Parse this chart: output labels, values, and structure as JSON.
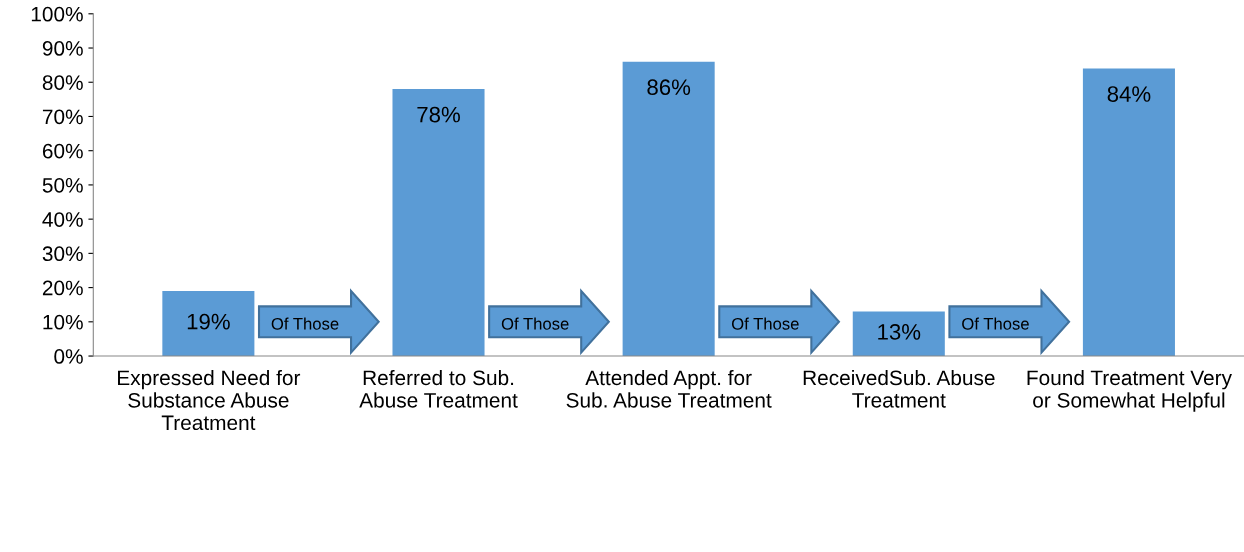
{
  "chart_data": {
    "type": "bar",
    "categories": [
      "Expressed Need for Substance Abuse Treatment",
      "Referred to Sub. Abuse Treatment",
      "Attended Appt. for Sub. Abuse Treatment",
      "ReceivedSub. Abuse Treatment",
      "Found Treatment Very or Somewhat Helpful"
    ],
    "values": [
      19,
      78,
      86,
      13,
      84
    ],
    "value_labels": [
      "19%",
      "78%",
      "86%",
      "13%",
      "84%"
    ],
    "color": "#5b9bd5",
    "ylim": [
      0,
      100
    ],
    "yticks": [
      {
        "value": 0,
        "label": "0%"
      },
      {
        "value": 10,
        "label": "10%"
      },
      {
        "value": 20,
        "label": "20%"
      },
      {
        "value": 30,
        "label": "30%"
      },
      {
        "value": 40,
        "label": "40%"
      },
      {
        "value": 50,
        "label": "50%"
      },
      {
        "value": 60,
        "label": "60%"
      },
      {
        "value": 70,
        "label": "70%"
      },
      {
        "value": 80,
        "label": "80%"
      },
      {
        "value": 90,
        "label": "90%"
      },
      {
        "value": 100,
        "label": "100%"
      }
    ],
    "annotations": [
      "Of Those",
      "Of Those",
      "Of Those",
      "Of Those"
    ],
    "grid": false,
    "legend": false
  }
}
